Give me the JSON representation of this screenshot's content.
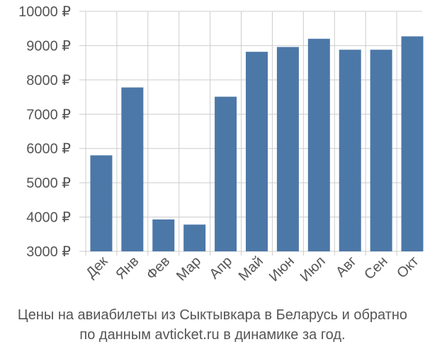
{
  "chart_data": {
    "type": "bar",
    "categories": [
      "Дек",
      "Янв",
      "Фев",
      "Мар",
      "Апр",
      "Май",
      "Июн",
      "Июл",
      "Авг",
      "Сен",
      "Окт"
    ],
    "values": [
      5800,
      7780,
      3930,
      3780,
      7510,
      8820,
      8960,
      9200,
      8880,
      8880,
      9270
    ],
    "ylim": [
      3000,
      10000
    ],
    "yticks": [
      3000,
      4000,
      5000,
      6000,
      7000,
      8000,
      9000,
      10000
    ],
    "ytick_labels": [
      "3000 ₽",
      "4000 ₽",
      "5000 ₽",
      "6000 ₽",
      "7000 ₽",
      "8000 ₽",
      "9000 ₽",
      "10000 ₽"
    ],
    "grid": true,
    "bar_color": "#4c78a8",
    "grid_color": "#cccccc"
  },
  "caption": {
    "line1": "Цены на авиабилеты из Сыктывкара в Беларусь и обратно",
    "line2": "по данным avticket.ru в динамике за год."
  }
}
